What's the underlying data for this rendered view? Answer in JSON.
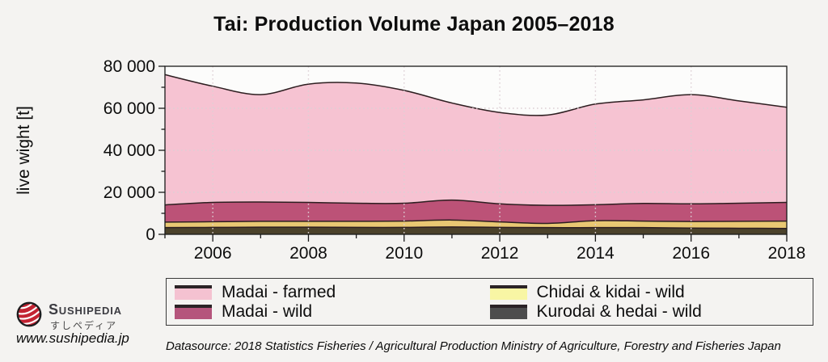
{
  "title": "Tai: Production Volume Japan 2005–2018",
  "ylabel": "live wight [t]",
  "chart_data": {
    "type": "area",
    "stacked": true,
    "title": "Tai: Production Volume Japan 2005–2018",
    "xlabel": "",
    "ylabel": "live wight [t]",
    "x": [
      2005,
      2006,
      2007,
      2008,
      2009,
      2010,
      2011,
      2012,
      2013,
      2014,
      2015,
      2016,
      2017,
      2018
    ],
    "series": [
      {
        "name": "Madai - farmed",
        "values": [
          62000,
          55300,
          51100,
          56300,
          57200,
          53700,
          46200,
          43500,
          43000,
          47900,
          49300,
          52000,
          48700,
          45300
        ],
        "fill": "#f6c3d2",
        "legend_swatch": "#f4c2d1"
      },
      {
        "name": "Madai - wild",
        "values": [
          8200,
          9200,
          9200,
          9000,
          8600,
          8500,
          9500,
          8600,
          8600,
          7600,
          8400,
          8400,
          8600,
          8900
        ],
        "fill": "#bc5277",
        "legend_swatch": "#b5557c"
      },
      {
        "name": "Chidai & kidai - wild",
        "values": [
          2600,
          2700,
          2800,
          2800,
          2900,
          3000,
          3300,
          2600,
          2000,
          3300,
          3100,
          3100,
          3300,
          3500
        ],
        "fill": "#e9c873",
        "legend_swatch": "#f8f6a4"
      },
      {
        "name": "Kurodai & hedai - wild",
        "values": [
          3200,
          3300,
          3400,
          3400,
          3300,
          3300,
          3500,
          3300,
          3200,
          3200,
          3200,
          3000,
          2900,
          2800
        ],
        "fill": "#4b422b",
        "legend_swatch": "#4d4d4d"
      }
    ],
    "outline_color": "#2d1e20",
    "grid": "dotted",
    "grid_color": "#ddd0d5",
    "legend_position": "bottom",
    "xlim": [
      2005,
      2018
    ],
    "ylim": [
      0,
      80000
    ],
    "yticks": [
      {
        "v": 0,
        "label": "0"
      },
      {
        "v": 20000,
        "label": "20 000"
      },
      {
        "v": 40000,
        "label": "40 000"
      },
      {
        "v": 60000,
        "label": "60 000"
      },
      {
        "v": 80000,
        "label": "80 000"
      }
    ],
    "xticks": [
      {
        "v": 2006,
        "label": "2006"
      },
      {
        "v": 2008,
        "label": "2008"
      },
      {
        "v": 2010,
        "label": "2010"
      },
      {
        "v": 2012,
        "label": "2012"
      },
      {
        "v": 2014,
        "label": "2014"
      },
      {
        "v": 2016,
        "label": "2016"
      },
      {
        "v": 2018,
        "label": "2018"
      }
    ]
  },
  "legend_order": [
    0,
    2,
    1,
    3
  ],
  "footer": {
    "brand": "Sushipedia",
    "brand_jp": "すしペディア",
    "url": "www.sushipedia.jp",
    "datasource": "Datasource: 2018 Statistics Fisheries / Agricultural Production Ministry of Agriculture, Forestry and Fisheries Japan",
    "logo_color": "#c32433"
  },
  "colors": {
    "background": "#f4f3f1",
    "plot_background": "#fcfcfb",
    "frame": "#1a1a1a"
  }
}
